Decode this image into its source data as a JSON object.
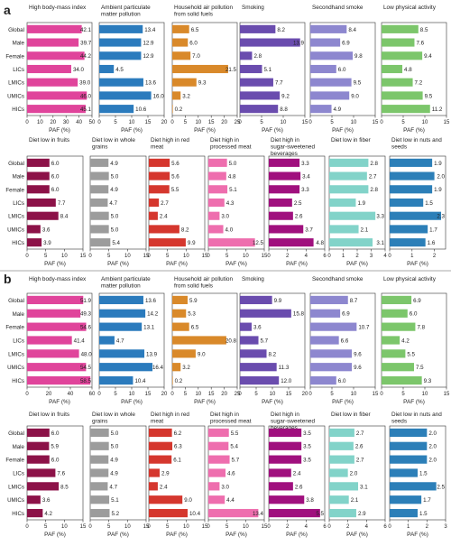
{
  "chart_data": [
    {
      "panel": "a",
      "type": "bar",
      "orientation": "horizontal",
      "categories": [
        "Global",
        "Male",
        "Female",
        "LICs",
        "LMICs",
        "UMICs",
        "HICs"
      ],
      "xlabel": "PAF (%)",
      "rows": [
        {
          "charts": [
            {
              "title": "High body-mass index",
              "color": "#e0449b",
              "xlim": [
                0,
                50
              ],
              "ticks": [
                0,
                10,
                20,
                30,
                40,
                50
              ],
              "values": [
                42.1,
                39.7,
                44.2,
                34.0,
                39.0,
                46.0,
                45.1
              ]
            },
            {
              "title": "Ambient particulate matter pollution",
              "color": "#2b7bbd",
              "xlim": [
                0,
                20
              ],
              "ticks": [
                0,
                5,
                10,
                15,
                20
              ],
              "values": [
                13.4,
                12.9,
                12.9,
                4.5,
                13.6,
                16.0,
                10.6
              ]
            },
            {
              "title": "Household air pollution from solid fuels",
              "color": "#d9892a",
              "xlim": [
                0,
                25
              ],
              "ticks": [
                0,
                5,
                10,
                15,
                20,
                25
              ],
              "values": [
                6.5,
                6.0,
                7.0,
                21.5,
                9.3,
                3.2,
                0.2
              ]
            },
            {
              "title": "Smoking",
              "color": "#6a4cae",
              "xlim": [
                0,
                15
              ],
              "ticks": [
                0,
                5,
                10,
                15
              ],
              "values": [
                8.2,
                13.9,
                2.8,
                5.1,
                7.7,
                9.2,
                8.8
              ]
            },
            {
              "title": "Secondhand smoke",
              "color": "#8d87cf",
              "xlim": [
                0,
                15
              ],
              "ticks": [
                0,
                5,
                10,
                15
              ],
              "values": [
                8.4,
                6.9,
                9.8,
                6.0,
                9.5,
                9.0,
                4.9
              ]
            },
            {
              "title": "Low physical activity",
              "color": "#7cc66b",
              "xlim": [
                0,
                15
              ],
              "ticks": [
                0,
                5,
                10,
                15
              ],
              "values": [
                8.5,
                7.6,
                9.4,
                4.8,
                7.2,
                9.5,
                11.2
              ]
            }
          ]
        },
        {
          "charts": [
            {
              "title": "Diet low in fruits",
              "color": "#8c1248",
              "xlim": [
                0,
                15
              ],
              "ticks": [
                0,
                5,
                10,
                15
              ],
              "values": [
                6.0,
                6.0,
                6.0,
                7.7,
                8.4,
                3.6,
                3.9
              ]
            },
            {
              "title": "Diet low in whole grains",
              "color": "#9c9c9c",
              "xlim": [
                0,
                15
              ],
              "ticks": [
                0,
                5,
                10,
                15
              ],
              "values": [
                4.9,
                5.0,
                4.9,
                4.7,
                5.0,
                5.0,
                5.4
              ]
            },
            {
              "title": "Diet high in red meat",
              "color": "#d5372e",
              "xlim": [
                0,
                15
              ],
              "ticks": [
                0,
                5,
                10,
                15
              ],
              "values": [
                5.6,
                5.6,
                5.5,
                2.7,
                2.4,
                8.2,
                9.9
              ]
            },
            {
              "title": "Diet high in processed meat",
              "color": "#ee6eae",
              "xlim": [
                0,
                15
              ],
              "ticks": [
                0,
                5,
                10,
                15
              ],
              "values": [
                5.0,
                4.8,
                5.1,
                4.3,
                3.0,
                4.0,
                12.5
              ]
            },
            {
              "title": "Diet high in sugar-sweetened beverages",
              "color": "#a0107e",
              "xlim": [
                0,
                6
              ],
              "ticks": [
                0,
                2,
                4,
                6
              ],
              "values": [
                3.3,
                3.4,
                3.3,
                2.5,
                2.6,
                3.7,
                4.8
              ]
            },
            {
              "title": "Diet low in fiber",
              "color": "#82d3c9",
              "xlim": [
                0,
                4
              ],
              "ticks": [
                0,
                1,
                2,
                3,
                4
              ],
              "values": [
                2.8,
                2.7,
                2.8,
                1.9,
                3.3,
                2.1,
                3.1
              ]
            },
            {
              "title": "Diet low in nuts and seeds",
              "color": "#2c7fb8",
              "xlim": [
                0,
                2.5
              ],
              "ticks": [
                0,
                1,
                2
              ],
              "values": [
                1.9,
                2.0,
                1.9,
                1.5,
                2.3,
                1.7,
                1.6
              ]
            }
          ]
        }
      ]
    },
    {
      "panel": "b",
      "type": "bar",
      "orientation": "horizontal",
      "categories": [
        "Global",
        "Male",
        "Female",
        "LICs",
        "LMICs",
        "UMICs",
        "HICs"
      ],
      "xlabel": "PAF (%)",
      "rows": [
        {
          "charts": [
            {
              "title": "High body-mass index",
              "color": "#e0449b",
              "xlim": [
                0,
                60
              ],
              "ticks": [
                0,
                20,
                40,
                60
              ],
              "values": [
                51.9,
                49.3,
                54.6,
                41.4,
                48.0,
                54.5,
                58.5
              ]
            },
            {
              "title": "Ambient particulate matter pollution",
              "color": "#2b7bbd",
              "xlim": [
                0,
                20
              ],
              "ticks": [
                0,
                5,
                10,
                15,
                20
              ],
              "values": [
                13.6,
                14.2,
                13.1,
                4.7,
                13.9,
                16.4,
                10.4
              ]
            },
            {
              "title": "Household air pollution from solid fuels",
              "color": "#d9892a",
              "xlim": [
                0,
                25
              ],
              "ticks": [
                0,
                5,
                10,
                15,
                20,
                25
              ],
              "values": [
                5.9,
                5.3,
                6.5,
                20.8,
                9.0,
                3.2,
                0.2
              ]
            },
            {
              "title": "Smoking",
              "color": "#6a4cae",
              "xlim": [
                0,
                20
              ],
              "ticks": [
                0,
                5,
                10,
                15,
                20
              ],
              "values": [
                9.9,
                15.8,
                3.6,
                5.7,
                8.2,
                11.3,
                12.0
              ]
            },
            {
              "title": "Secondhand smoke",
              "color": "#8d87cf",
              "xlim": [
                0,
                15
              ],
              "ticks": [
                0,
                5,
                10,
                15
              ],
              "values": [
                8.7,
                6.9,
                10.7,
                6.6,
                9.6,
                9.6,
                6.0
              ]
            },
            {
              "title": "Low physical activity",
              "color": "#7cc66b",
              "xlim": [
                0,
                15
              ],
              "ticks": [
                0,
                5,
                10,
                15
              ],
              "values": [
                6.9,
                6.0,
                7.8,
                4.2,
                5.5,
                7.5,
                9.3
              ]
            }
          ]
        },
        {
          "charts": [
            {
              "title": "Diet low in fruits",
              "color": "#8c1248",
              "xlim": [
                0,
                15
              ],
              "ticks": [
                0,
                5,
                10,
                15
              ],
              "values": [
                6.0,
                5.9,
                6.0,
                7.6,
                8.5,
                3.6,
                4.2
              ]
            },
            {
              "title": "Diet low in whole grains",
              "color": "#9c9c9c",
              "xlim": [
                0,
                15
              ],
              "ticks": [
                0,
                5,
                10,
                15
              ],
              "values": [
                5.0,
                5.0,
                4.9,
                4.9,
                4.7,
                5.1,
                5.2
              ]
            },
            {
              "title": "Diet high in red meat",
              "color": "#d5372e",
              "xlim": [
                0,
                15
              ],
              "ticks": [
                0,
                5,
                10,
                15
              ],
              "values": [
                6.2,
                6.3,
                6.1,
                2.9,
                2.4,
                9.0,
                10.4
              ]
            },
            {
              "title": "Diet high in processed meat",
              "color": "#ee6eae",
              "xlim": [
                0,
                15
              ],
              "ticks": [
                0,
                5,
                10,
                15
              ],
              "values": [
                5.5,
                5.4,
                5.7,
                4.6,
                3.0,
                4.4,
                13.4
              ]
            },
            {
              "title": "Diet high in sugar-sweetened beverages",
              "color": "#a0107e",
              "xlim": [
                0,
                6
              ],
              "ticks": [
                0,
                2,
                4,
                6
              ],
              "values": [
                3.5,
                3.5,
                3.5,
                2.4,
                2.6,
                3.8,
                5.5
              ]
            },
            {
              "title": "Diet low in fiber",
              "color": "#82d3c9",
              "xlim": [
                0,
                6
              ],
              "ticks": [
                0,
                2,
                4,
                6
              ],
              "values": [
                2.7,
                2.6,
                2.7,
                2.0,
                3.1,
                2.1,
                2.9
              ]
            },
            {
              "title": "Diet low in nuts and seeds",
              "color": "#2c7fb8",
              "xlim": [
                0,
                3
              ],
              "ticks": [
                0,
                1,
                2,
                3
              ],
              "values": [
                2.0,
                2.0,
                2.0,
                1.5,
                2.5,
                1.7,
                1.5
              ]
            }
          ]
        }
      ]
    }
  ]
}
